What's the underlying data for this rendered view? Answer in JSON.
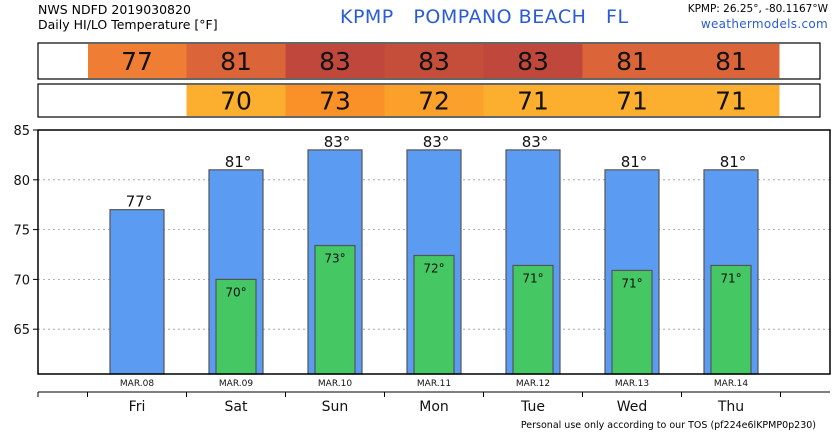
{
  "header": {
    "source_line": "NWS NDFD 2019030820",
    "title_line": "Daily HI/LO Temperature [°F]",
    "station": "KPMP",
    "place": "POMPANO BEACH",
    "state": "FL",
    "coords": "KPMP: 26.25°, -80.1167°W",
    "site": "weathermodels.com"
  },
  "footer": {
    "note": "Personal use only according to our TOS (pf224e6lKPMP0p230)"
  },
  "chart_data": {
    "type": "bar",
    "categories": [
      "MAR.08",
      "MAR.09",
      "MAR.10",
      "MAR.11",
      "MAR.12",
      "MAR.13",
      "MAR.14"
    ],
    "days": [
      "Fri",
      "Sat",
      "Sun",
      "Mon",
      "Tue",
      "Wed",
      "Thu"
    ],
    "series": [
      {
        "values": [
          77,
          81,
          83,
          83,
          83,
          81,
          81
        ],
        "labels": [
          "77°",
          "81°",
          "83°",
          "83°",
          "83°",
          "81°",
          "81°"
        ],
        "strip_labels": [
          "77",
          "81",
          "83",
          "83",
          "83",
          "81",
          "81"
        ],
        "color": "#5b9cf2",
        "strip_colors": [
          "#f07d34",
          "#db6438",
          "#c0473b",
          "#c54e3b",
          "#c0473b",
          "#db6438",
          "#db6438"
        ]
      },
      {
        "values": [
          null,
          70,
          73.4,
          72.4,
          71.4,
          70.9,
          71.4
        ],
        "labels": [
          "",
          "70°",
          "73°",
          "72°",
          "71°",
          "71°",
          "71°"
        ],
        "strip_labels": [
          "",
          "70",
          "73",
          "72",
          "71",
          "71",
          "71"
        ],
        "color": "#45c764",
        "strip_colors": [
          null,
          "#fcae2e",
          "#f99028",
          "#faa02b",
          "#fcae2e",
          "#fcae2e",
          "#fcae2e"
        ]
      }
    ],
    "yticks": [
      65,
      70,
      75,
      80,
      85
    ],
    "ylim": [
      60.5,
      85
    ],
    "grid": true,
    "axis_color": "#000000"
  }
}
